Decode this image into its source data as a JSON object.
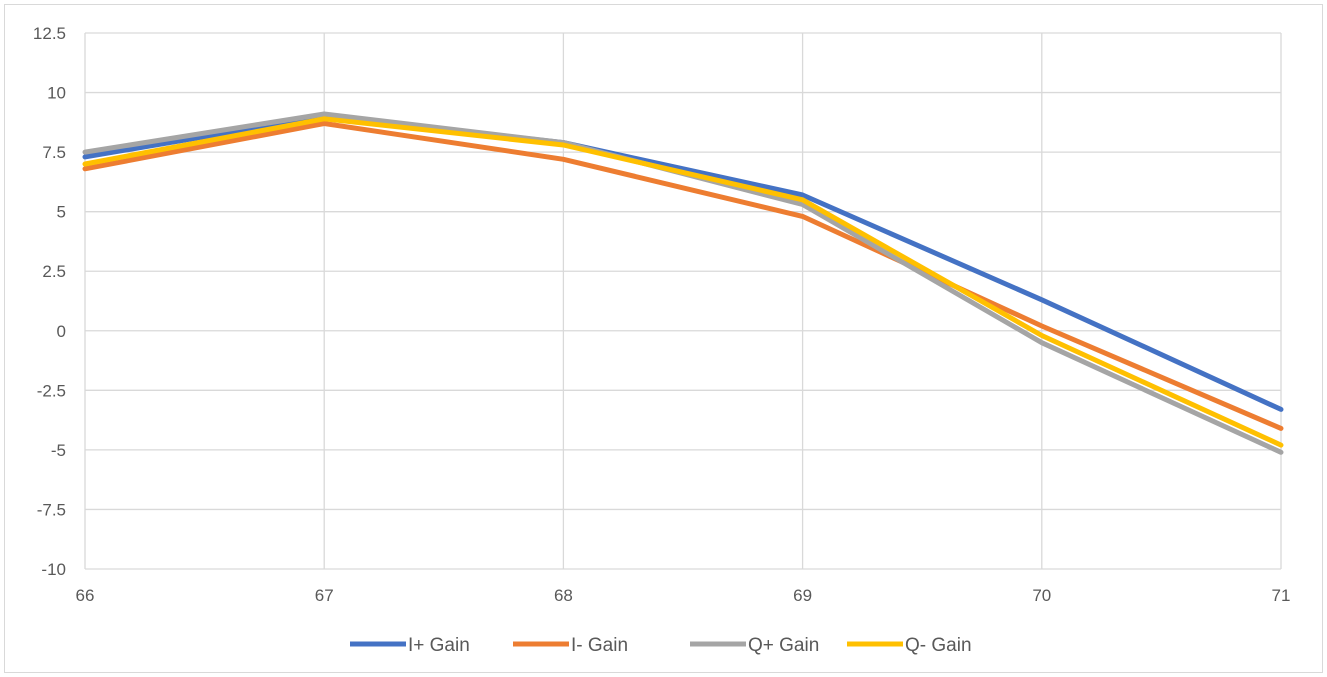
{
  "chart_data": {
    "type": "line",
    "title": "",
    "xlabel": "",
    "ylabel": "",
    "x": [
      66,
      67,
      68,
      69,
      70,
      71
    ],
    "xlim": [
      66,
      71
    ],
    "ylim": [
      -10,
      12.5
    ],
    "x_ticks": [
      "66",
      "67",
      "68",
      "69",
      "70",
      "71"
    ],
    "y_ticks": [
      "12.5",
      "10",
      "7.5",
      "5",
      "2.5",
      "0",
      "-2.5",
      "-5",
      "-7.5",
      "-10"
    ],
    "y_tick_values": [
      12.5,
      10,
      7.5,
      5,
      2.5,
      0,
      -2.5,
      -5,
      -7.5,
      -10
    ],
    "grid": true,
    "legend_position": "bottom",
    "series": [
      {
        "name": "I+ Gain",
        "color": "#4472c4",
        "values": [
          7.3,
          9.0,
          7.9,
          5.7,
          1.3,
          -3.3
        ]
      },
      {
        "name": "I- Gain",
        "color": "#ed7d31",
        "values": [
          6.8,
          8.7,
          7.2,
          4.8,
          0.2,
          -4.1
        ]
      },
      {
        "name": "Q+ Gain",
        "color": "#a5a5a5",
        "values": [
          7.5,
          9.1,
          7.9,
          5.3,
          -0.5,
          -5.1
        ]
      },
      {
        "name": "Q- Gain",
        "color": "#ffc000",
        "values": [
          7.0,
          8.9,
          7.8,
          5.5,
          -0.2,
          -4.8
        ]
      }
    ]
  }
}
